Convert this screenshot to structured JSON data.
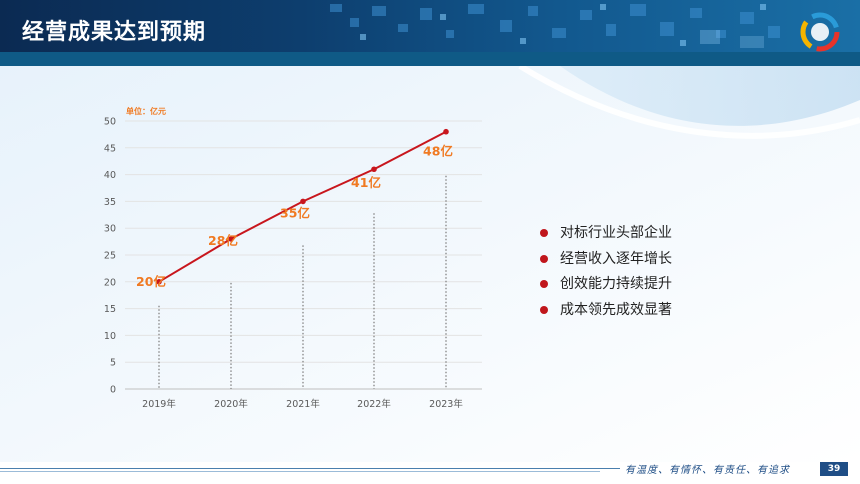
{
  "header": {
    "title": "经营成果达到预期"
  },
  "chart_data": {
    "type": "line",
    "unit_label": "单位：亿元",
    "categories": [
      "2019年",
      "2020年",
      "2021年",
      "2022年",
      "2023年"
    ],
    "values": [
      20,
      28,
      35,
      41,
      48
    ],
    "data_labels": [
      "20亿",
      "28亿",
      "35亿",
      "41亿",
      "48亿"
    ],
    "ylim": [
      0,
      50
    ],
    "yticks": [
      "0",
      "5",
      "10",
      "15",
      "20",
      "25",
      "30",
      "35",
      "40",
      "45",
      "50"
    ],
    "grid": true,
    "line_color": "#c8161d",
    "label_color": "#f07a22"
  },
  "bullets": [
    "对标行业头部企业",
    "经营收入逐年增长",
    "创效能力持续提升",
    "成本领先成效显著"
  ],
  "footer": {
    "slogan": "有温度、有情怀、有责任、有追求",
    "page_number": "39"
  },
  "colors": {
    "header": "#0d3e6e",
    "accent_red": "#c0161c",
    "accent_orange": "#f07a22"
  }
}
